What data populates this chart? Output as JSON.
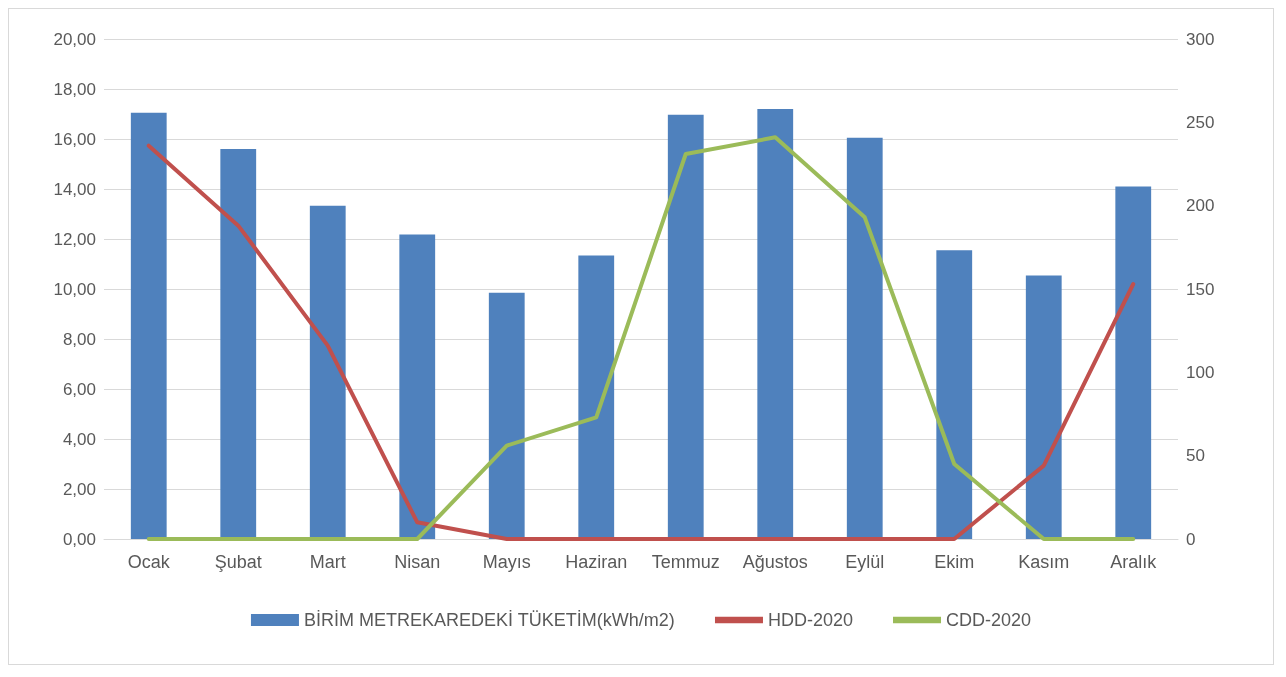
{
  "chart_data": {
    "type": "bar",
    "categories": [
      "Ocak",
      "Şubat",
      "Mart",
      "Nisan",
      "Mayıs",
      "Haziran",
      "Temmuz",
      "Ağustos",
      "Eylül",
      "Ekim",
      "Kasım",
      "Aralık"
    ],
    "series": [
      {
        "name": "BİRİM METREKAREDEKİ TÜKETİM(kWh/m2)",
        "color": "#4f81bd",
        "values": [
          17.05,
          15.6,
          13.33,
          12.18,
          9.85,
          11.34,
          16.97,
          17.2,
          16.05,
          11.55,
          10.54,
          14.1
        ]
      },
      {
        "name": "HDD-2020",
        "type": "line",
        "axis": "y2",
        "color": "#c0504d",
        "values": [
          236,
          188,
          116,
          10,
          0,
          0,
          0,
          0,
          0,
          0,
          44,
          153
        ]
      },
      {
        "name": "CDD-2020",
        "type": "line",
        "axis": "y2",
        "color": "#9bbb59",
        "values": [
          0,
          0,
          0,
          0,
          56,
          73,
          231,
          241,
          193,
          45,
          0,
          0
        ]
      }
    ],
    "ylim": [
      0,
      20
    ],
    "yticks": [
      {
        "value": 0,
        "label": "0,00"
      },
      {
        "value": 2,
        "label": "2,00"
      },
      {
        "value": 4,
        "label": "4,00"
      },
      {
        "value": 6,
        "label": "6,00"
      },
      {
        "value": 8,
        "label": "8,00"
      },
      {
        "value": 10,
        "label": "10,00"
      },
      {
        "value": 12,
        "label": "12,00"
      },
      {
        "value": 14,
        "label": "14,00"
      },
      {
        "value": 16,
        "label": "16,00"
      },
      {
        "value": 18,
        "label": "18,00"
      },
      {
        "value": 20,
        "label": "20,00"
      }
    ],
    "y2lim": [
      0,
      300
    ],
    "y2ticks": [
      0,
      50,
      100,
      150,
      200,
      250,
      300
    ],
    "grid": "y",
    "legend": "bottom",
    "marker": "none",
    "line_style": "solid"
  }
}
